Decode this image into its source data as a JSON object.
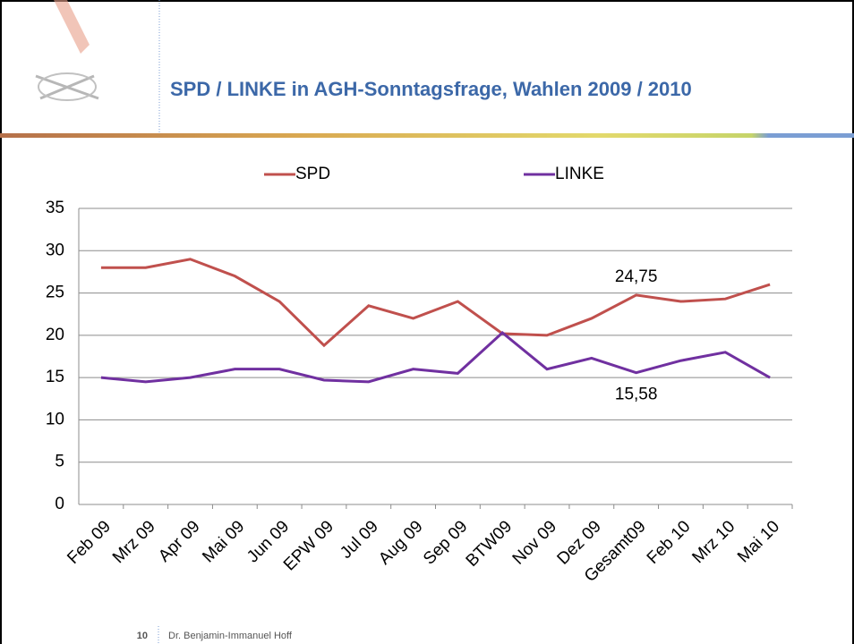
{
  "chart_data": {
    "type": "line",
    "title": "SPD / LINKE in AGH-Sonntagsfrage, Wahlen 2009 / 2010",
    "categories": [
      "Feb 09",
      "Mrz 09",
      "Apr 09",
      "Mai 09",
      "Jun 09",
      "EPW 09",
      "Jul 09",
      "Aug 09",
      "Sep 09",
      "BTW09",
      "Nov 09",
      "Dez 09",
      "Gesamt09",
      "Feb 10",
      "Mrz 10",
      "Mai 10"
    ],
    "series": [
      {
        "name": "SPD",
        "color": "#c0504d",
        "values": [
          28,
          28,
          29,
          27,
          24,
          18.8,
          23.5,
          22,
          24,
          20.2,
          20,
          22,
          24.75,
          24,
          24.3,
          26
        ],
        "value_labels": [
          null,
          null,
          null,
          null,
          null,
          null,
          null,
          null,
          null,
          null,
          null,
          null,
          "24,75",
          null,
          null,
          null
        ]
      },
      {
        "name": "LINKE",
        "color": "#7030a0",
        "values": [
          15,
          14.5,
          15,
          16,
          16,
          14.7,
          14.5,
          16,
          15.5,
          20.3,
          16,
          17.3,
          15.58,
          17,
          18,
          15
        ],
        "value_labels": [
          null,
          null,
          null,
          null,
          null,
          null,
          null,
          null,
          null,
          null,
          null,
          null,
          "15,58",
          null,
          null,
          null
        ]
      }
    ],
    "ylim": [
      0,
      35
    ],
    "yticks": [
      0,
      5,
      10,
      15,
      20,
      25,
      30,
      35
    ],
    "grid": true,
    "legend": "top"
  },
  "footer": {
    "page_number": "10",
    "author": "Dr. Benjamin-Immanuel Hoff"
  }
}
